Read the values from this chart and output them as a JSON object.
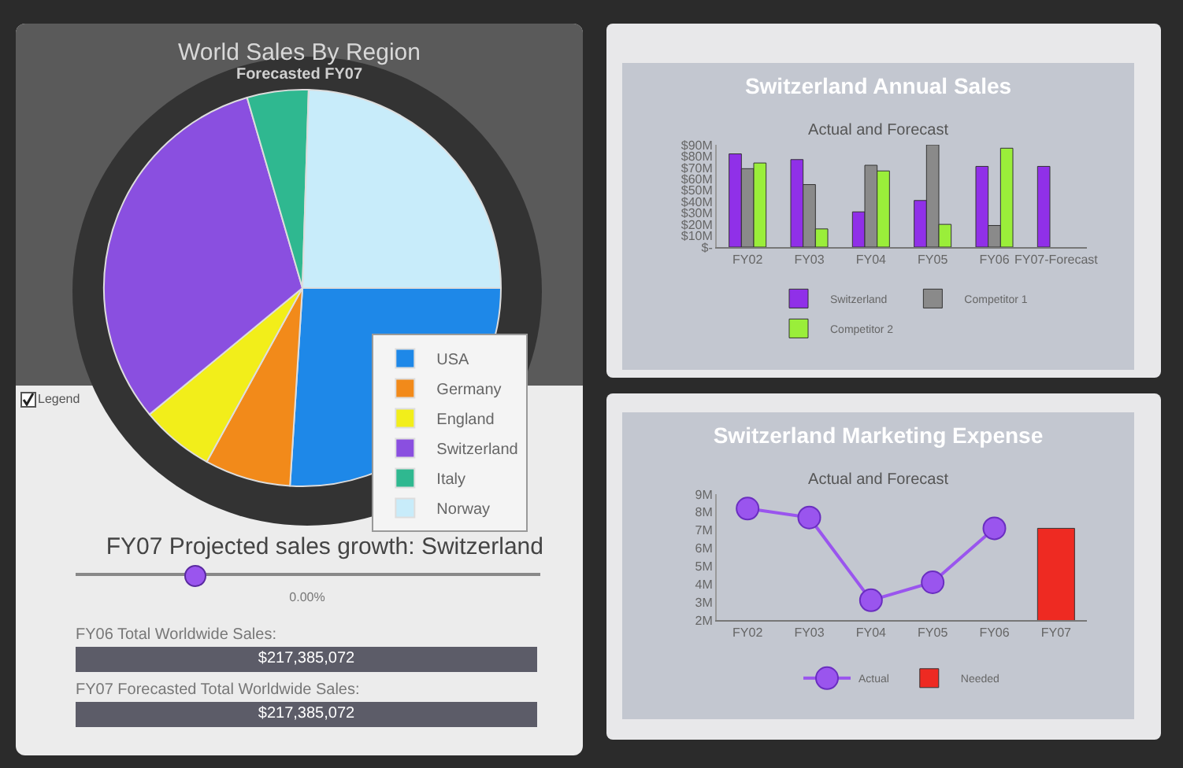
{
  "chart_data": [
    {
      "type": "pie",
      "title": "World Sales By Region",
      "subtitle": "Forecasted FY07",
      "categories": [
        "USA",
        "Germany",
        "England",
        "Switzerland",
        "Italy",
        "Norway"
      ],
      "values": [
        26,
        7,
        6,
        31.5,
        5,
        24.5
      ],
      "colors": [
        "#1e88e8",
        "#f28a1a",
        "#f2ee1a",
        "#8a4fe0",
        "#2fb890",
        "#c8ecfa"
      ],
      "legend": "bottom right",
      "annotations": [
        "Legend"
      ]
    },
    {
      "type": "bar",
      "title": "Switzerland Annual Sales",
      "subtitle": "Actual and Forecast",
      "categories": [
        "FY02",
        "FY03",
        "FY04",
        "FY05",
        "FY06",
        "FY07-Forecast"
      ],
      "series": [
        {
          "name": "Switzerland",
          "color": "#9030e8",
          "values": [
            82,
            77,
            31,
            41,
            71,
            71
          ]
        },
        {
          "name": "Competitor 1",
          "color": "#8a8a8a",
          "values": [
            69,
            55,
            72,
            90,
            19,
            null
          ]
        },
        {
          "name": "Competitor 2",
          "color": "#9aee3a",
          "values": [
            74,
            16,
            67,
            20,
            87,
            null
          ]
        }
      ],
      "ylim": [
        0,
        90
      ],
      "yticks": [
        {
          "value": 0,
          "label": "$-"
        },
        {
          "value": 10,
          "label": "$10M"
        },
        {
          "value": 20,
          "label": "$20M"
        },
        {
          "value": 30,
          "label": "$30M"
        },
        {
          "value": 40,
          "label": "$40M"
        },
        {
          "value": 50,
          "label": "$50M"
        },
        {
          "value": 60,
          "label": "$60M"
        },
        {
          "value": 70,
          "label": "$70M"
        },
        {
          "value": 80,
          "label": "$80M"
        },
        {
          "value": 90,
          "label": "$90M"
        }
      ],
      "legend": "bottom"
    },
    {
      "type": "line",
      "title": "Switzerland Marketing Expense",
      "subtitle": "Actual and Forecast",
      "categories": [
        "FY02",
        "FY03",
        "FY04",
        "FY05",
        "FY06",
        "FY07"
      ],
      "series": [
        {
          "name": "Actual",
          "type": "line",
          "color": "#9a55ee",
          "values": [
            8.2,
            7.7,
            3.1,
            4.1,
            7.1,
            null
          ]
        },
        {
          "name": "Needed",
          "type": "bar",
          "color": "#ee2a22",
          "values": [
            null,
            null,
            null,
            null,
            null,
            7.1
          ]
        }
      ],
      "ylim": [
        2,
        9
      ],
      "yticks": [
        {
          "value": 2,
          "label": "2M"
        },
        {
          "value": 3,
          "label": "3M"
        },
        {
          "value": 4,
          "label": "4M"
        },
        {
          "value": 5,
          "label": "5M"
        },
        {
          "value": 6,
          "label": "6M"
        },
        {
          "value": 7,
          "label": "7M"
        },
        {
          "value": 8,
          "label": "8M"
        },
        {
          "value": 9,
          "label": "9M"
        }
      ],
      "marker": "circle",
      "legend": "bottom"
    },
    {
      "type": "other",
      "title": "FY07 Projected sales growth: Switzerland",
      "annotations": [
        "0.00%",
        "FY06 Total Worldwide Sales:",
        "$217,385,072",
        "FY07 Forecasted Total Worldwide Sales:",
        "$217,385,072"
      ]
    }
  ]
}
